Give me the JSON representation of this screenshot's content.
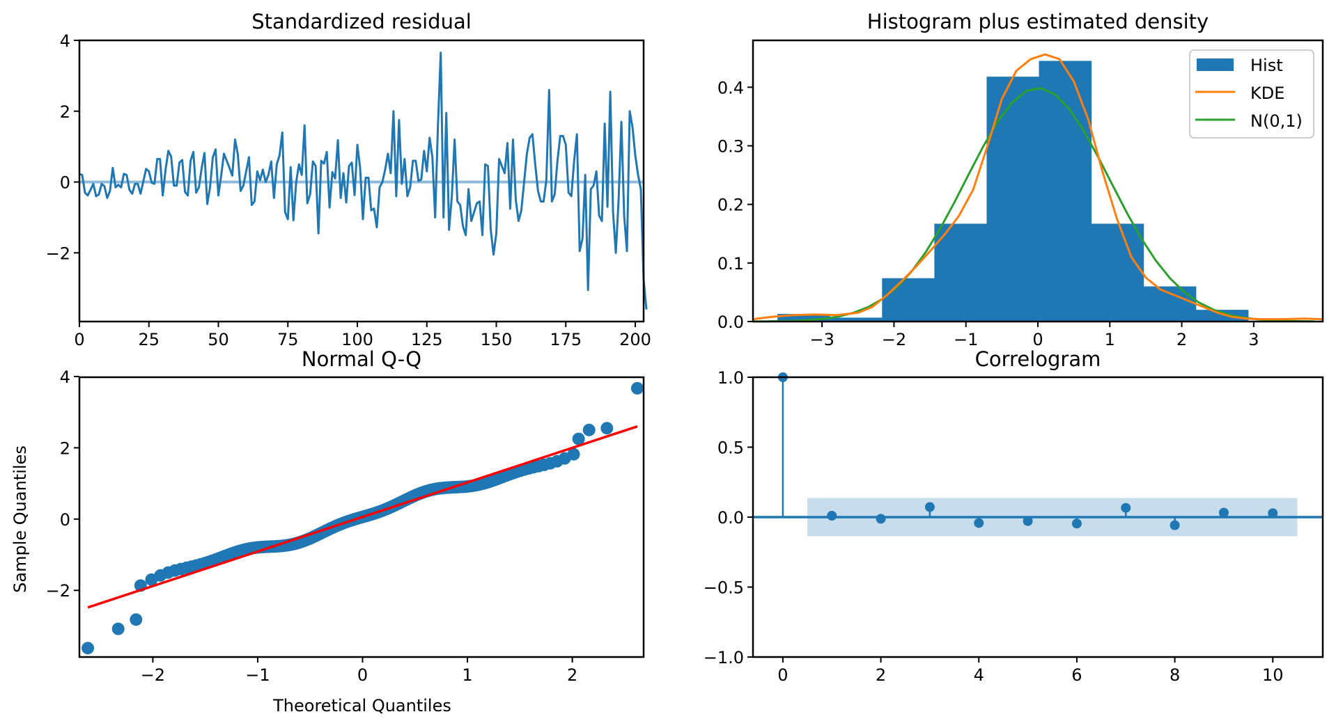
{
  "figure": {
    "colors": {
      "blue": "#1f77b4",
      "orange": "#ff7f0e",
      "green": "#2ca02c",
      "red": "#ff0000",
      "band": "#c6dbed"
    }
  },
  "chart_data": [
    {
      "id": "residual",
      "type": "line",
      "title": "Standardized residual",
      "xlabel": "",
      "ylabel": "",
      "xlim": [
        0,
        203
      ],
      "ylim": [
        -3.94,
        4.0
      ],
      "xticks": [
        0,
        25,
        50,
        75,
        100,
        125,
        150,
        175,
        200
      ],
      "yticks": [
        -2,
        0,
        2,
        4
      ],
      "ytick_labels": [
        "−2",
        "0",
        "2",
        "4"
      ],
      "reference_line": 0,
      "grid": false,
      "values": [
        0.22,
        0.2,
        -0.3,
        -0.38,
        -0.22,
        -0.05,
        -0.4,
        -0.35,
        -0.05,
        -0.12,
        -0.45,
        -0.25,
        0.4,
        -0.15,
        -0.08,
        -0.15,
        0.23,
        0.2,
        -0.22,
        -0.33,
        -0.05,
        -0.05,
        -0.33,
        0.02,
        0.37,
        0.3,
        -0.02,
        -0.05,
        0.65,
        0.65,
        -0.38,
        0.35,
        0.88,
        0.72,
        -0.1,
        -0.1,
        0.55,
        0.62,
        -0.28,
        -0.38,
        0.6,
        0.85,
        -0.3,
        -0.15,
        0.4,
        0.82,
        -0.62,
        -0.15,
        0.7,
        0.92,
        -0.38,
        0.18,
        0.8,
        0.6,
        0.4,
        0.18,
        1.2,
        0.78,
        -0.25,
        -0.1,
        0.3,
        0.7,
        -0.65,
        -0.55,
        0.3,
        0.05,
        0.35,
        0.0,
        0.2,
        0.58,
        -0.45,
        0.5,
        0.75,
        1.4,
        -0.85,
        -1.05,
        0.42,
        -1.08,
        0.0,
        0.5,
        0.2,
        1.6,
        -0.6,
        -0.35,
        0.58,
        0.45,
        -1.45,
        0.6,
        0.52,
        0.85,
        -0.72,
        0.28,
        0.1,
        1.18,
        -0.45,
        0.25,
        -0.58,
        0.45,
        0.55,
        -0.37,
        1.05,
        0.4,
        -1.05,
        0.12,
        0.12,
        -0.8,
        -0.75,
        -1.28,
        -0.15,
        0.0,
        0.35,
        0.8,
        0.25,
        2.0,
        -0.4,
        1.75,
        -0.05,
        0.65,
        -0.4,
        -0.15,
        0.6,
        0.6,
        0.03,
        0.07,
        0.88,
        0.3,
        1.25,
        0.7,
        -1.0,
        1.6,
        3.65,
        -1.0,
        1.95,
        -1.35,
        -0.4,
        1.2,
        -0.55,
        -0.65,
        -1.25,
        -1.5,
        -0.2,
        -1.1,
        -0.85,
        -0.6,
        -0.55,
        -1.5,
        0.5,
        0.45,
        -1.35,
        -2.05,
        -1.45,
        0.65,
        0.45,
        0.25,
        1.1,
        -0.75,
        1.2,
        -0.5,
        -1.1,
        -0.8,
        0.0,
        0.8,
        1.25,
        1.35,
        0.5,
        -0.25,
        -0.55,
        -0.55,
        0.05,
        2.6,
        -0.55,
        -0.35,
        0.6,
        1.3,
        1.3,
        1.05,
        -0.3,
        -0.4,
        0.6,
        1.35,
        -1.95,
        -1.6,
        0.2,
        -3.05,
        -0.2,
        -0.1,
        0.3,
        -0.95,
        -1.1,
        1.65,
        -0.7,
        2.55,
        -0.85,
        -2.0,
        -0.5,
        1.7,
        -0.95,
        -1.95,
        2.0,
        1.55,
        0.75,
        0.2,
        -0.2,
        -2.75,
        -3.6
      ]
    },
    {
      "id": "histogram",
      "type": "bar",
      "title": "Histogram plus estimated density",
      "xlabel": "",
      "ylabel": "",
      "xlim": [
        -3.96,
        3.96
      ],
      "ylim": [
        0,
        0.48
      ],
      "xticks": [
        -3,
        -2,
        -1,
        0,
        1,
        2,
        3
      ],
      "xtick_labels": [
        "−3",
        "−2",
        "−1",
        "0",
        "1",
        "2",
        "3"
      ],
      "yticks": [
        0.0,
        0.1,
        0.2,
        0.3,
        0.4
      ],
      "ytick_labels": [
        "0.0",
        "0.1",
        "0.2",
        "0.3",
        "0.4"
      ],
      "bin_edges": [
        -3.62,
        -2.893,
        -2.166,
        -1.439,
        -0.712,
        0.015,
        0.742,
        1.469,
        2.196,
        2.923
      ],
      "values": [
        0.013,
        0.0067,
        0.074,
        0.167,
        0.418,
        0.445,
        0.167,
        0.06,
        0.02
      ],
      "kde": {
        "x": [
          -3.96,
          -3.7,
          -3.4,
          -3.1,
          -2.8,
          -2.5,
          -2.3,
          -2.1,
          -1.9,
          -1.7,
          -1.5,
          -1.3,
          -1.1,
          -0.9,
          -0.7,
          -0.5,
          -0.3,
          -0.1,
          0.1,
          0.3,
          0.5,
          0.7,
          0.9,
          1.1,
          1.3,
          1.5,
          1.7,
          1.9,
          2.1,
          2.3,
          2.5,
          2.7,
          2.9,
          3.1,
          3.4,
          3.7,
          3.96
        ],
        "y": [
          0.004,
          0.008,
          0.011,
          0.012,
          0.011,
          0.015,
          0.025,
          0.045,
          0.068,
          0.093,
          0.12,
          0.148,
          0.18,
          0.225,
          0.3,
          0.38,
          0.428,
          0.448,
          0.456,
          0.448,
          0.41,
          0.345,
          0.255,
          0.175,
          0.11,
          0.075,
          0.055,
          0.045,
          0.035,
          0.025,
          0.015,
          0.008,
          0.005,
          0.004,
          0.004,
          0.005,
          0.004
        ]
      },
      "normal": {
        "mean": 0,
        "sd": 1
      },
      "legend": {
        "position": "upper right",
        "entries": [
          {
            "label": "Hist",
            "kind": "patch",
            "color": "#1f77b4"
          },
          {
            "label": "KDE",
            "kind": "line",
            "color": "#ff7f0e"
          },
          {
            "label": "N(0,1)",
            "kind": "line",
            "color": "#2ca02c"
          }
        ]
      }
    },
    {
      "id": "qq",
      "type": "scatter",
      "title": "Normal Q-Q",
      "xlabel": "Theoretical Quantiles",
      "ylabel": "Sample Quantiles",
      "xlim": [
        -2.7,
        2.68
      ],
      "ylim": [
        -3.87,
        3.98
      ],
      "xticks": [
        -2,
        -1,
        0,
        1,
        2
      ],
      "xtick_labels": [
        "−2",
        "−1",
        "0",
        "1",
        "2"
      ],
      "yticks": [
        -2,
        0,
        2,
        4
      ],
      "ytick_labels": [
        "−2",
        "0",
        "2",
        "4"
      ],
      "fit_line": {
        "x": [
          -2.62,
          2.62
        ],
        "y": [
          -2.48,
          2.6
        ]
      },
      "outliers": [
        {
          "x": -2.62,
          "y": -3.62
        },
        {
          "x": -2.33,
          "y": -3.08
        },
        {
          "x": -2.16,
          "y": -2.82
        },
        {
          "x": 2.06,
          "y": 2.25
        },
        {
          "x": 2.16,
          "y": 2.5
        },
        {
          "x": 2.33,
          "y": 2.55
        },
        {
          "x": 2.62,
          "y": 3.67
        }
      ],
      "n_points": 204
    },
    {
      "id": "correlogram",
      "type": "stem",
      "title": "Correlogram",
      "xlabel": "",
      "ylabel": "",
      "xlim": [
        -0.61,
        11.02
      ],
      "ylim": [
        -1.0,
        1.0
      ],
      "xticks": [
        0,
        2,
        4,
        6,
        8,
        10
      ],
      "yticks": [
        -1.0,
        -0.5,
        0.0,
        0.5,
        1.0
      ],
      "ytick_labels": [
        "−1.0",
        "−0.5",
        "0.0",
        "0.5",
        "1.0"
      ],
      "lags": [
        0,
        1,
        2,
        3,
        4,
        5,
        6,
        7,
        8,
        9,
        10
      ],
      "values": [
        1.0,
        0.01,
        -0.012,
        0.072,
        -0.042,
        -0.028,
        -0.046,
        0.066,
        -0.058,
        0.032,
        0.028
      ],
      "confidence_band": {
        "lower": -0.137,
        "upper": 0.137,
        "x_from": 0.5,
        "x_to": 10.5
      }
    }
  ]
}
